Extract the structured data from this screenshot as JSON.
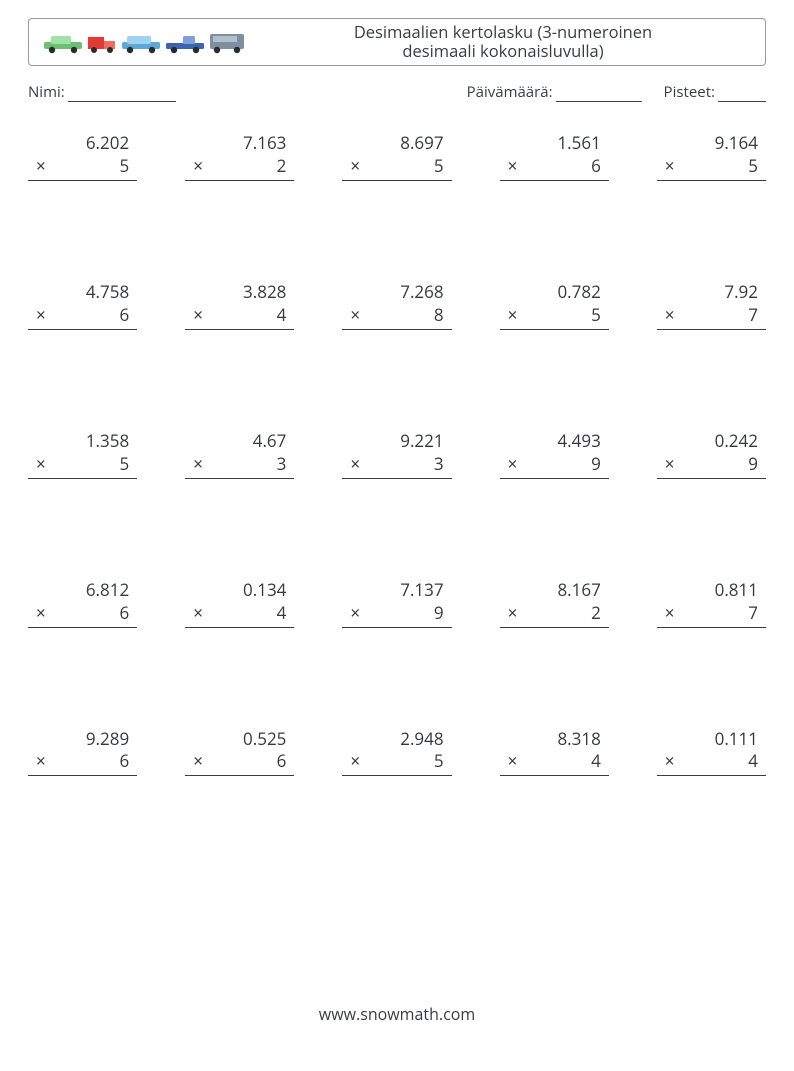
{
  "header": {
    "title_line1": "Desimaalien kertolasku (3-numeroinen",
    "title_line2": "desimaali kokonaisluvulla)",
    "icon_colors": {
      "car1_body": "#6fbf73",
      "car1_top": "#a1e2a6",
      "truck_body": "#e53935",
      "truck_cab": "#ef6c60",
      "van_body": "#5ba8d8",
      "van_top": "#9fd3ef",
      "pickup_body": "#3a63b0",
      "pickup_top": "#7ea0d8",
      "bus_body": "#7d8fa3",
      "bus_top": "#b3c0cc",
      "wheel": "#2b2b2b"
    }
  },
  "fields": {
    "name_label": "Nimi:",
    "date_label": "Päivämäärä:",
    "score_label": "Pisteet:",
    "name_blank_width": 108,
    "date_blank_width": 86,
    "score_blank_width": 48
  },
  "style": {
    "page_bg": "#ffffff",
    "text_color": "#36383a",
    "border_color": "#9a9a9a",
    "rule_color": "#3a3c3e",
    "font_size_title": 16.5,
    "font_size_body": 17,
    "font_size_fields": 15,
    "operator": "×",
    "grid_cols": 5,
    "grid_rows": 5
  },
  "problems": [
    {
      "a": "6.202",
      "b": "5"
    },
    {
      "a": "7.163",
      "b": "2"
    },
    {
      "a": "8.697",
      "b": "5"
    },
    {
      "a": "1.561",
      "b": "6"
    },
    {
      "a": "9.164",
      "b": "5"
    },
    {
      "a": "4.758",
      "b": "6"
    },
    {
      "a": "3.828",
      "b": "4"
    },
    {
      "a": "7.268",
      "b": "8"
    },
    {
      "a": "0.782",
      "b": "5"
    },
    {
      "a": "7.92",
      "b": "7"
    },
    {
      "a": "1.358",
      "b": "5"
    },
    {
      "a": "4.67",
      "b": "3"
    },
    {
      "a": "9.221",
      "b": "3"
    },
    {
      "a": "4.493",
      "b": "9"
    },
    {
      "a": "0.242",
      "b": "9"
    },
    {
      "a": "6.812",
      "b": "6"
    },
    {
      "a": "0.134",
      "b": "4"
    },
    {
      "a": "7.137",
      "b": "9"
    },
    {
      "a": "8.167",
      "b": "2"
    },
    {
      "a": "0.811",
      "b": "7"
    },
    {
      "a": "9.289",
      "b": "6"
    },
    {
      "a": "0.525",
      "b": "6"
    },
    {
      "a": "2.948",
      "b": "5"
    },
    {
      "a": "8.318",
      "b": "4"
    },
    {
      "a": "0.111",
      "b": "4"
    }
  ],
  "footer": {
    "text": "www.snowmath.com"
  }
}
